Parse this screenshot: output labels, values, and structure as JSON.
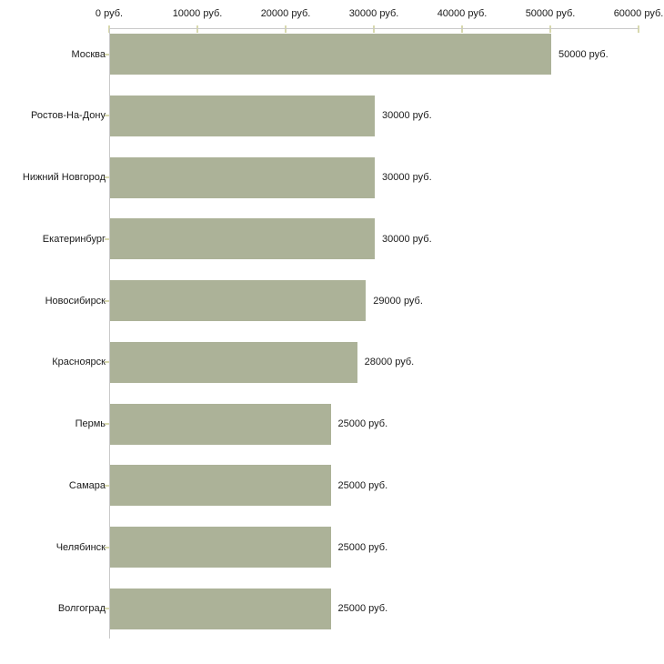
{
  "chart_data": {
    "type": "bar",
    "orientation": "horizontal",
    "title": "",
    "xlabel": "",
    "ylabel": "",
    "categories": [
      "Москва",
      "Ростов-На-Дону",
      "Нижний Новгород",
      "Екатеринбург",
      "Новосибирск",
      "Красноярск",
      "Пермь",
      "Самара",
      "Челябинск",
      "Волгоград"
    ],
    "values": [
      50000,
      30000,
      30000,
      30000,
      29000,
      28000,
      25000,
      25000,
      25000,
      25000
    ],
    "value_labels": [
      "50000 руб.",
      "30000 руб.",
      "30000 руб.",
      "30000 руб.",
      "29000 руб.",
      "28000 руб.",
      "25000 руб.",
      "25000 руб.",
      "25000 руб.",
      "25000 руб."
    ],
    "x_tick_labels": [
      "0 руб.",
      "10000 руб.",
      "20000 руб.",
      "30000 руб.",
      "40000 руб.",
      "50000 руб.",
      "60000 руб."
    ],
    "x_tick_values": [
      0,
      10000,
      20000,
      30000,
      40000,
      50000,
      60000
    ],
    "xlim": [
      0,
      60000
    ],
    "unit": "руб.",
    "grid": false,
    "legend": null,
    "colors": {
      "bar": "#acb298",
      "axis_line": "#c9c9c9",
      "tick_mark": "#d8d9ae",
      "text": "#1a1a1a",
      "background": "#ffffff"
    }
  }
}
